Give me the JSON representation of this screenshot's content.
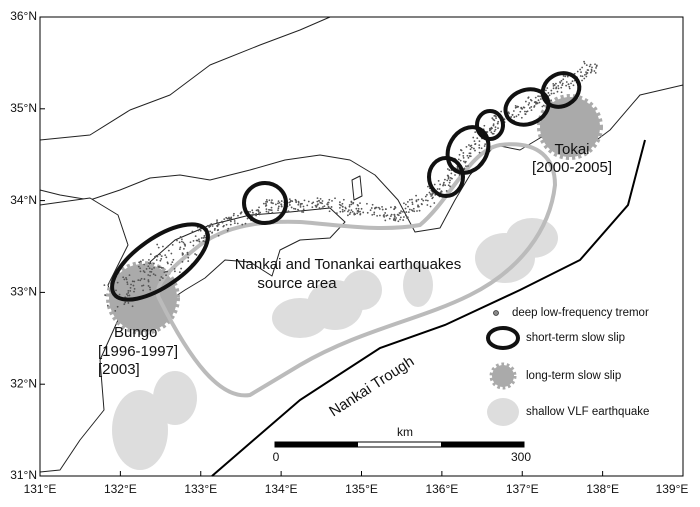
{
  "map": {
    "lon_labels": [
      "131°E",
      "132°E",
      "133°E",
      "134°E",
      "135°E",
      "136°E",
      "137°E",
      "138°E",
      "139°E"
    ],
    "lat_labels": [
      "31°N",
      "32°N",
      "33°N",
      "34°N",
      "35°N",
      "36°N"
    ],
    "annotations": {
      "source_area": [
        "Nankai and Tonankai earthquakes",
        "source area"
      ],
      "tokai": [
        "Tokai",
        "[2000-2005]"
      ],
      "bungo": [
        "Bungo",
        "[1996-1997]",
        "[2003]"
      ],
      "trough": "Nankai Trough"
    },
    "legend": [
      "deep low-frequency tremor",
      "short-term slow slip",
      "long-term slow slip",
      "shallow VLF earthquake"
    ],
    "scale_bar": {
      "unit": "km",
      "start": 0,
      "end": 300
    }
  }
}
